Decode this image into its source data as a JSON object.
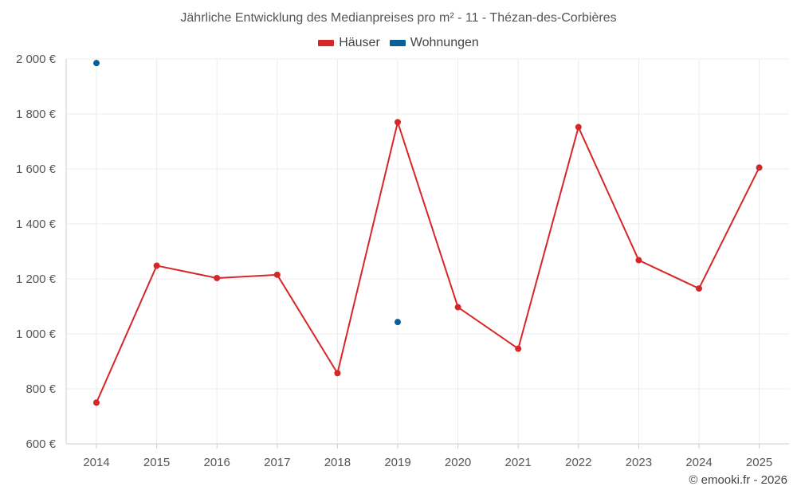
{
  "chart_data": {
    "type": "line",
    "title": "Jährliche Entwicklung des Medianpreises pro m² - 11 - Thézan-des-Corbières",
    "xlabel": "",
    "ylabel": "",
    "categories": [
      "2014",
      "2015",
      "2016",
      "2017",
      "2018",
      "2019",
      "2020",
      "2021",
      "2022",
      "2023",
      "2024",
      "2025"
    ],
    "ylim": [
      600,
      2000
    ],
    "y_ticks": [
      600,
      800,
      1000,
      1200,
      1400,
      1600,
      1800,
      2000
    ],
    "y_tick_labels": [
      "600 €",
      "800 €",
      "1 000 €",
      "1 200 €",
      "1 400 €",
      "1 600 €",
      "1 800 €",
      "2 000 €"
    ],
    "grid": true,
    "legend_position": "top-center",
    "series": [
      {
        "name": "Häuser",
        "color": "#d62728",
        "values": [
          750,
          1248,
          1203,
          1215,
          857,
          1770,
          1097,
          946,
          1752,
          1268,
          1165,
          1605
        ]
      },
      {
        "name": "Wohnungen",
        "color": "#0b5f99",
        "values": [
          1985,
          null,
          null,
          null,
          null,
          1043,
          null,
          null,
          null,
          null,
          null,
          null
        ]
      }
    ]
  },
  "credit": "© emooki.fr - 2026"
}
